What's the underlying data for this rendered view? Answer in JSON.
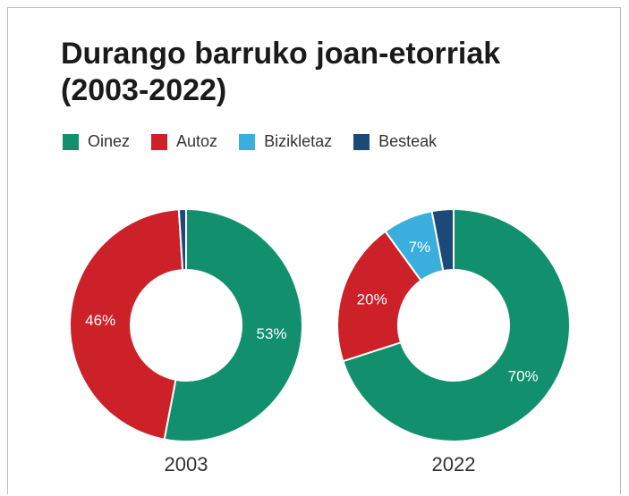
{
  "chart_data": {
    "type": "pie",
    "title_line1": "Durango barruko joan-etorriak",
    "title_line2": "(2003-2022)",
    "legend": [
      {
        "name": "Oinez",
        "color": "#12906e"
      },
      {
        "name": "Autoz",
        "color": "#cc2128"
      },
      {
        "name": "Bizikletaz",
        "color": "#3aaedc"
      },
      {
        "name": "Besteak",
        "color": "#1b4a78"
      }
    ],
    "charts": [
      {
        "label": "2003",
        "slices": [
          {
            "name": "Oinez",
            "value": 53,
            "label": "53%"
          },
          {
            "name": "Autoz",
            "value": 46,
            "label": "46%"
          },
          {
            "name": "Bizikletaz",
            "value": 0,
            "label": ""
          },
          {
            "name": "Besteak",
            "value": 1,
            "label": ""
          }
        ]
      },
      {
        "label": "2022",
        "slices": [
          {
            "name": "Oinez",
            "value": 70,
            "label": "70%"
          },
          {
            "name": "Autoz",
            "value": 20,
            "label": "20%"
          },
          {
            "name": "Bizikletaz",
            "value": 7,
            "label": "7%"
          },
          {
            "name": "Besteak",
            "value": 3,
            "label": ""
          }
        ]
      }
    ]
  }
}
